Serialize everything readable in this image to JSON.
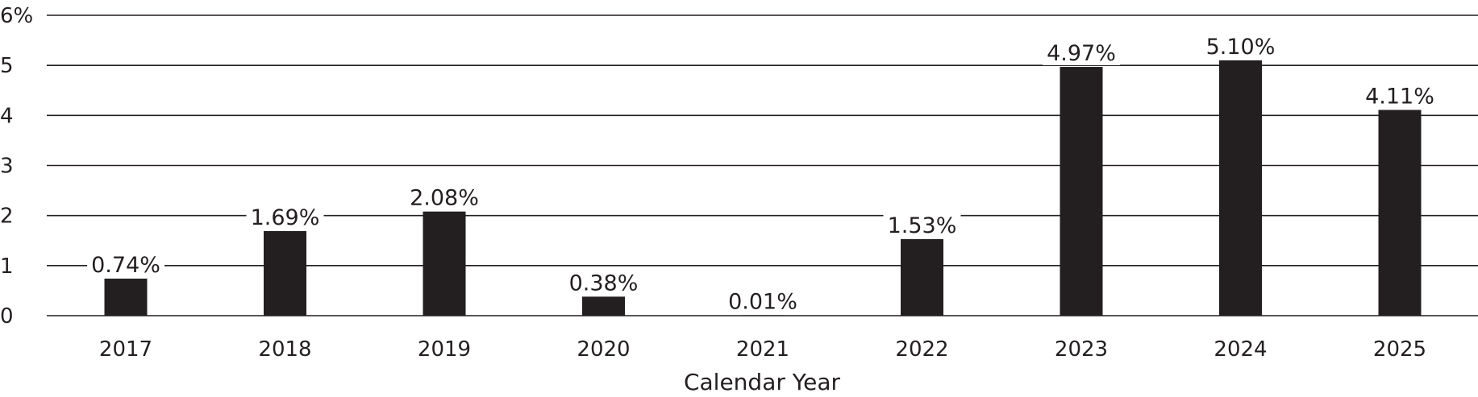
{
  "chart_data": {
    "type": "bar",
    "categories": [
      "2017",
      "2018",
      "2019",
      "2020",
      "2021",
      "2022",
      "2023",
      "2024",
      "2025"
    ],
    "values": [
      0.74,
      1.69,
      2.08,
      0.38,
      0.01,
      1.53,
      4.97,
      5.1,
      4.11
    ],
    "data_labels": [
      "0.74%",
      "1.69%",
      "2.08%",
      "0.38%",
      "0.01%",
      "1.53%",
      "4.97%",
      "5.10%",
      "4.11%"
    ],
    "title": "",
    "xlabel": "Calendar Year",
    "ylabel": "",
    "ylim": [
      0,
      6
    ],
    "yticks": [
      0,
      1,
      2,
      3,
      4,
      5,
      6
    ],
    "ytick_labels": [
      "0",
      "1",
      "2",
      "3",
      "4",
      "5",
      "6%"
    ],
    "grid": true,
    "legend": "none",
    "colors": {
      "bar": "#231f20",
      "grid": "#231f20",
      "text": "#231f20",
      "background": "#ffffff"
    }
  }
}
